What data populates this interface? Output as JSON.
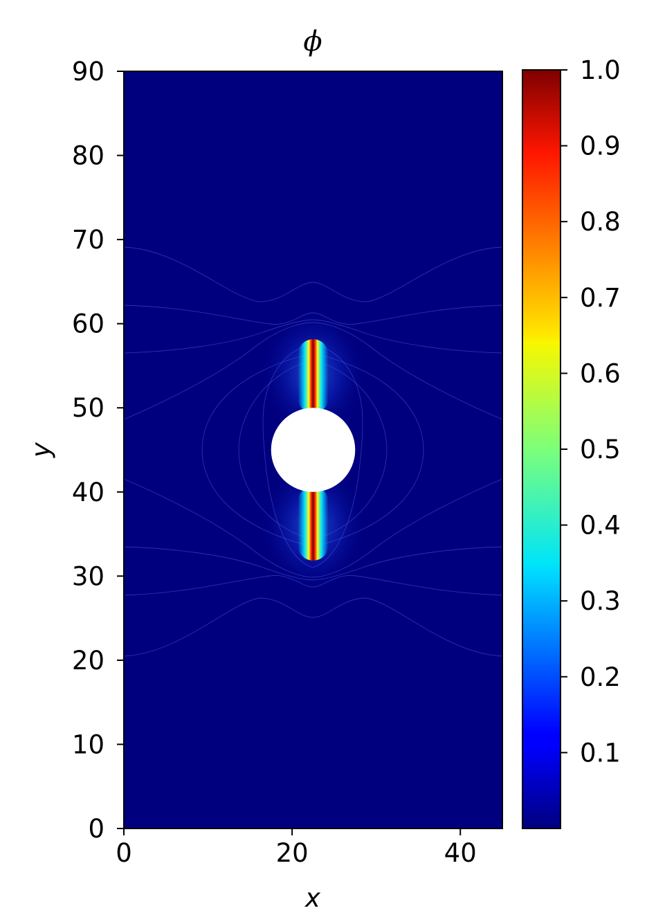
{
  "chart_data": {
    "type": "heatmap",
    "title": "ϕ",
    "xlabel": "x",
    "ylabel": "y",
    "xlim": [
      0,
      45
    ],
    "ylim": [
      0,
      90
    ],
    "xticks": [
      "0",
      "20",
      "40"
    ],
    "yticks": [
      "0",
      "10",
      "20",
      "30",
      "40",
      "50",
      "60",
      "70",
      "80",
      "90"
    ],
    "colormap": "jet",
    "colorbar": {
      "range": [
        0,
        1.0
      ],
      "ticks": [
        "0.1",
        "0.2",
        "0.3",
        "0.4",
        "0.5",
        "0.6",
        "0.7",
        "0.8",
        "0.9",
        "1.0"
      ]
    },
    "hole": {
      "center": [
        22.5,
        45
      ],
      "radius": 5
    },
    "cracks": [
      {
        "x": 22.5,
        "y_from": 50,
        "y_to": 57.5,
        "peak": 1.0
      },
      {
        "x": 22.5,
        "y_from": 32.5,
        "y_to": 40,
        "peak": 1.0
      }
    ],
    "grid": false
  }
}
